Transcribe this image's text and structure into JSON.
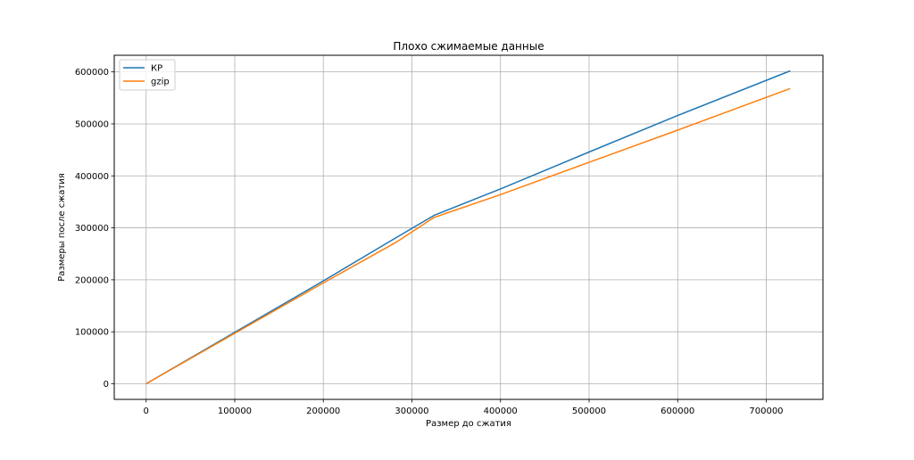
{
  "chart_data": {
    "type": "line",
    "title": "Плохо сжимаемые данные",
    "xlabel": "Размер до сжатия",
    "ylabel": "Размеры после сжатия",
    "xlim": [
      -36000,
      764000
    ],
    "ylim": [
      -30000,
      632000
    ],
    "x_ticks": [
      0,
      100000,
      200000,
      300000,
      400000,
      500000,
      600000,
      700000
    ],
    "x_tick_labels": [
      "0",
      "100000",
      "200000",
      "300000",
      "400000",
      "500000",
      "600000",
      "700000"
    ],
    "y_ticks": [
      0,
      100000,
      200000,
      300000,
      400000,
      500000,
      600000
    ],
    "y_tick_labels": [
      "0",
      "100000",
      "200000",
      "300000",
      "400000",
      "500000",
      "600000"
    ],
    "grid": true,
    "legend_position": "top-left",
    "series": [
      {
        "name": "КР",
        "color": "#1f77b4",
        "x": [
          0,
          100000,
          200000,
          283000,
          325000,
          400000,
          500000,
          600000,
          727000
        ],
        "y": [
          0,
          99000,
          198000,
          282000,
          324000,
          375000,
          446000,
          516000,
          602000
        ]
      },
      {
        "name": "gzip",
        "color": "#ff7f0e",
        "x": [
          0,
          100000,
          200000,
          283000,
          325000,
          400000,
          500000,
          600000,
          727000
        ],
        "y": [
          0,
          97000,
          194000,
          273000,
          320000,
          364000,
          426000,
          488000,
          568000
        ]
      }
    ]
  }
}
